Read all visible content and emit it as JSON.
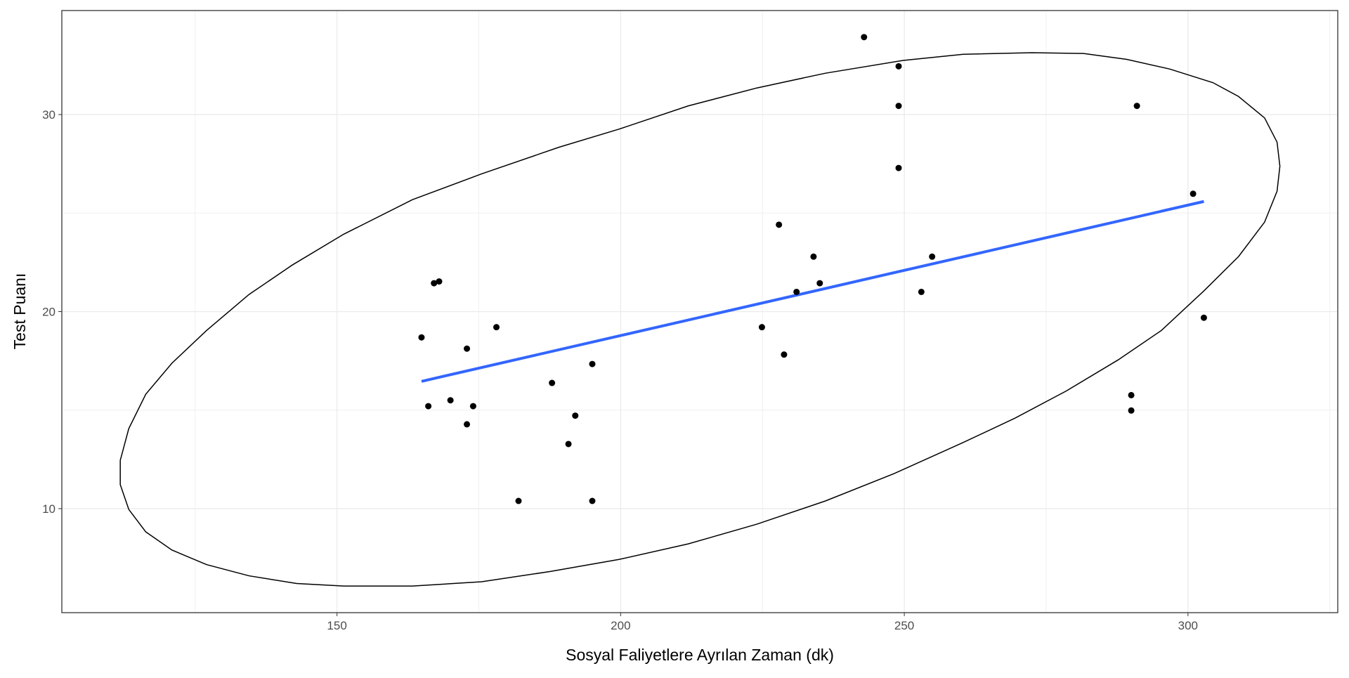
{
  "chart_data": {
    "type": "scatter",
    "x_label": "Sosyal Faliyetlere Ayrılan Zaman (dk)",
    "y_label": "Test Puanı",
    "xlim": [
      101.5,
      326.4
    ],
    "ylim": [
      4.72,
      35.28
    ],
    "xticks": [
      150,
      200,
      250,
      300
    ],
    "yticks": [
      10,
      20,
      30
    ],
    "xminor": [
      125,
      175,
      225,
      275,
      325
    ],
    "yminor": [
      15,
      25
    ],
    "grid": true,
    "points": {
      "color": "#000000",
      "x": [
        164.9,
        166.1,
        167.1,
        168.0,
        170.0,
        172.9,
        172.9,
        174.0,
        178.1,
        182.0,
        187.9,
        190.8,
        192.0,
        195.0,
        195.0,
        224.9,
        227.9,
        228.8,
        231.0,
        234.0,
        235.1,
        242.9,
        249.0,
        249.0,
        249.0,
        253.0,
        254.9,
        290.0,
        290.0,
        291.0,
        300.9,
        302.8
      ],
      "y": [
        18.69,
        15.2,
        21.44,
        21.53,
        15.5,
        18.12,
        14.28,
        15.2,
        19.21,
        10.39,
        16.38,
        13.28,
        14.72,
        17.34,
        10.39,
        19.21,
        24.41,
        17.82,
        21.0,
        22.79,
        21.44,
        33.93,
        32.45,
        30.44,
        27.29,
        21.0,
        22.79,
        15.76,
        14.98,
        30.44,
        25.98,
        19.69
      ]
    },
    "fit_line": {
      "color": "#3366ff",
      "x": [
        164.9,
        302.8
      ],
      "y": [
        16.46,
        25.59
      ]
    },
    "ellipse": {
      "color": "#000000",
      "x": [
        111.8,
        113.3,
        116.3,
        120.9,
        127.0,
        134.5,
        142.1,
        151.2,
        163.3,
        175.5,
        189.1,
        199.7,
        211.9,
        224.0,
        236.1,
        249.8,
        260.4,
        272.5,
        281.6,
        289.2,
        296.8,
        304.4,
        308.9,
        313.5,
        315.7,
        316.2,
        315.7,
        313.5,
        308.9,
        302.8,
        295.3,
        287.7,
        278.6,
        269.5,
        260.4,
        248.3,
        236.1,
        224.0,
        211.9,
        199.7,
        187.6,
        175.5,
        163.3,
        151.2,
        142.9,
        134.5,
        127.0,
        120.9,
        116.3,
        113.3,
        111.8
      ],
      "y": [
        12.45,
        14.06,
        15.81,
        17.38,
        19.04,
        20.87,
        22.36,
        23.93,
        25.68,
        26.99,
        28.34,
        29.26,
        30.44,
        31.35,
        32.1,
        32.75,
        33.06,
        33.14,
        33.1,
        32.8,
        32.31,
        31.62,
        30.92,
        29.83,
        28.6,
        27.38,
        26.11,
        24.54,
        22.79,
        21.05,
        19.04,
        17.55,
        15.98,
        14.59,
        13.36,
        11.79,
        10.39,
        9.21,
        8.21,
        7.42,
        6.81,
        6.29,
        6.07,
        6.07,
        6.2,
        6.59,
        7.16,
        7.9,
        8.82,
        9.96,
        11.22
      ]
    }
  }
}
